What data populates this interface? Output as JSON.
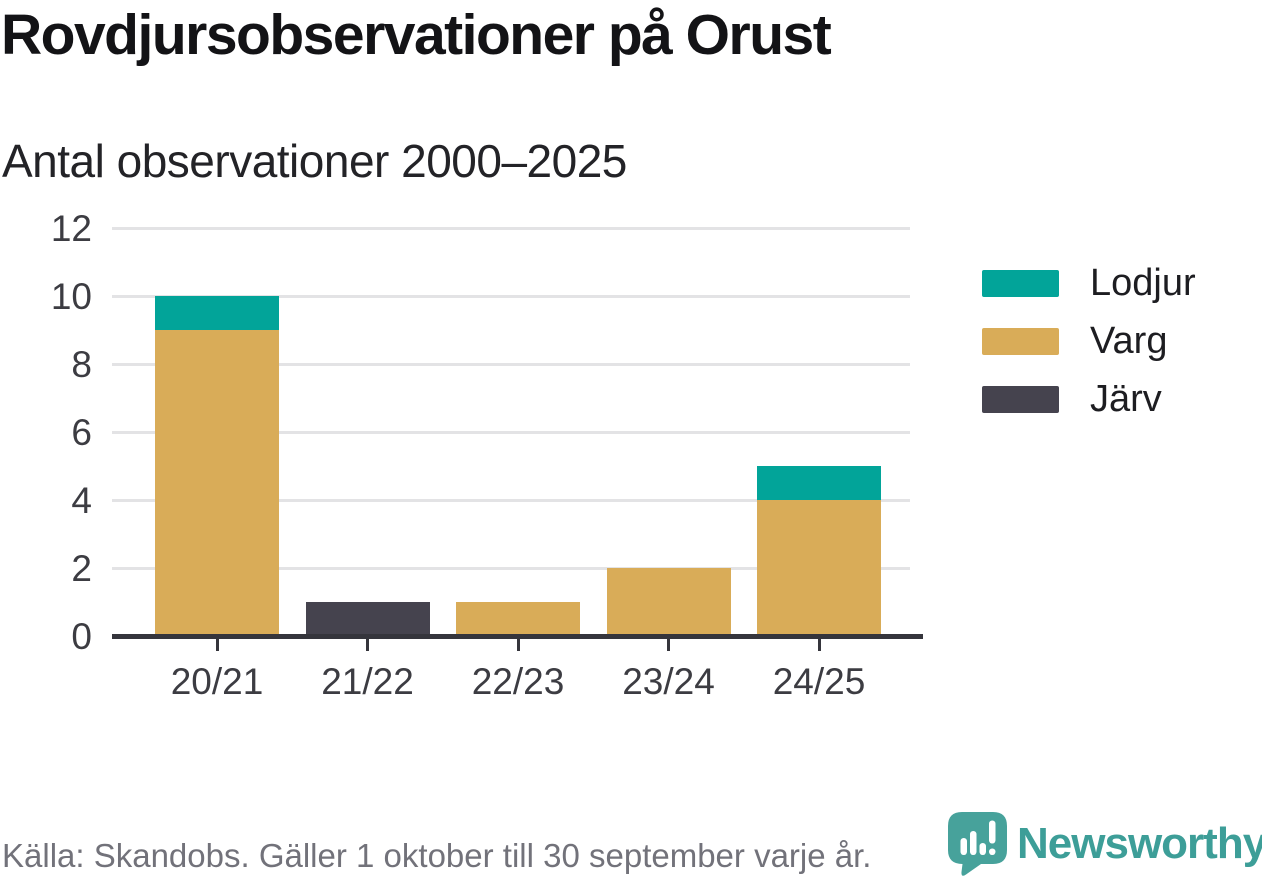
{
  "header": {
    "title": "Rovdjursobservationer på Orust",
    "subtitle": "Antal observationer 2000–2025"
  },
  "chart_data": {
    "type": "bar",
    "stacked": true,
    "title": "Rovdjursobservationer på Orust",
    "subtitle": "Antal observationer 2000–2025",
    "categories": [
      "20/21",
      "21/22",
      "22/23",
      "23/24",
      "24/25"
    ],
    "series": [
      {
        "name": "Lodjur",
        "color": "#02a499",
        "values": [
          1,
          0,
          0,
          0,
          1
        ]
      },
      {
        "name": "Varg",
        "color": "#d9ac58",
        "values": [
          9,
          0,
          1,
          2,
          4
        ]
      },
      {
        "name": "Järv",
        "color": "#45434e",
        "values": [
          0,
          1,
          0,
          0,
          0
        ]
      }
    ],
    "stack_order_bottom_to_top": [
      "Järv",
      "Varg",
      "Lodjur"
    ],
    "totals": [
      10,
      1,
      1,
      2,
      5
    ],
    "yticks": [
      0,
      2,
      4,
      6,
      8,
      10,
      12
    ],
    "ylim": [
      0,
      12
    ],
    "xlabel": "",
    "ylabel": "",
    "grid": true,
    "legend_position": "right"
  },
  "footer": {
    "source": "Källa: Skandobs. Gäller 1 oktober till 30 september varje år.",
    "brand": "Newsworthy"
  },
  "colors": {
    "lodjur_teal": "#02a499",
    "varg_gold": "#d9ac58",
    "jarv_dark": "#45434e",
    "brand_teal": "#3d9e98",
    "gridline": "#e3e3e5",
    "axis": "#35353c",
    "text_dark": "#131316",
    "text_muted": "#72727a"
  }
}
